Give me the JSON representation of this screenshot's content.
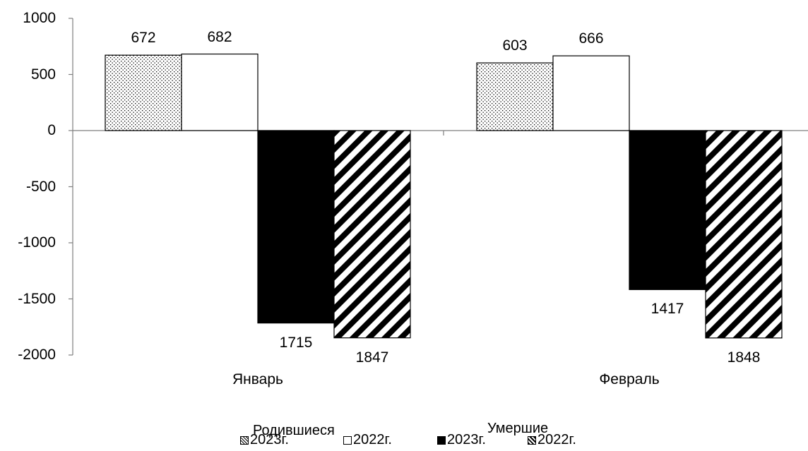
{
  "chart_data": {
    "type": "bar",
    "categories": [
      "Январь",
      "Февраль"
    ],
    "series": [
      {
        "name": "2023г.",
        "values": [
          672,
          603
        ],
        "pattern": "dots",
        "color": "#000000",
        "group": "Родившиеся"
      },
      {
        "name": "2022г.",
        "values": [
          682,
          666
        ],
        "pattern": "white",
        "color": "#000000",
        "group": "Родившиеся"
      },
      {
        "name": "2023г.",
        "values": [
          -1715,
          -1417
        ],
        "pattern": "solid",
        "color": "#000000",
        "group": "Умершие"
      },
      {
        "name": "2022г.",
        "values": [
          -1847,
          -1848
        ],
        "pattern": "diagonal",
        "color": "#000000",
        "group": "Умершие"
      }
    ],
    "data_labels": [
      [
        "672",
        "682",
        "1715",
        "1847"
      ],
      [
        "603",
        "666",
        "1417",
        "1848"
      ]
    ],
    "ylim": [
      -2000,
      1000
    ],
    "yticks": [
      "1000",
      "500",
      "0",
      "-500",
      "-1000",
      "-1500",
      "-2000"
    ],
    "grid": false,
    "legend_position": "bottom",
    "group_labels": [
      "Родившиеся",
      "Умершие"
    ]
  }
}
